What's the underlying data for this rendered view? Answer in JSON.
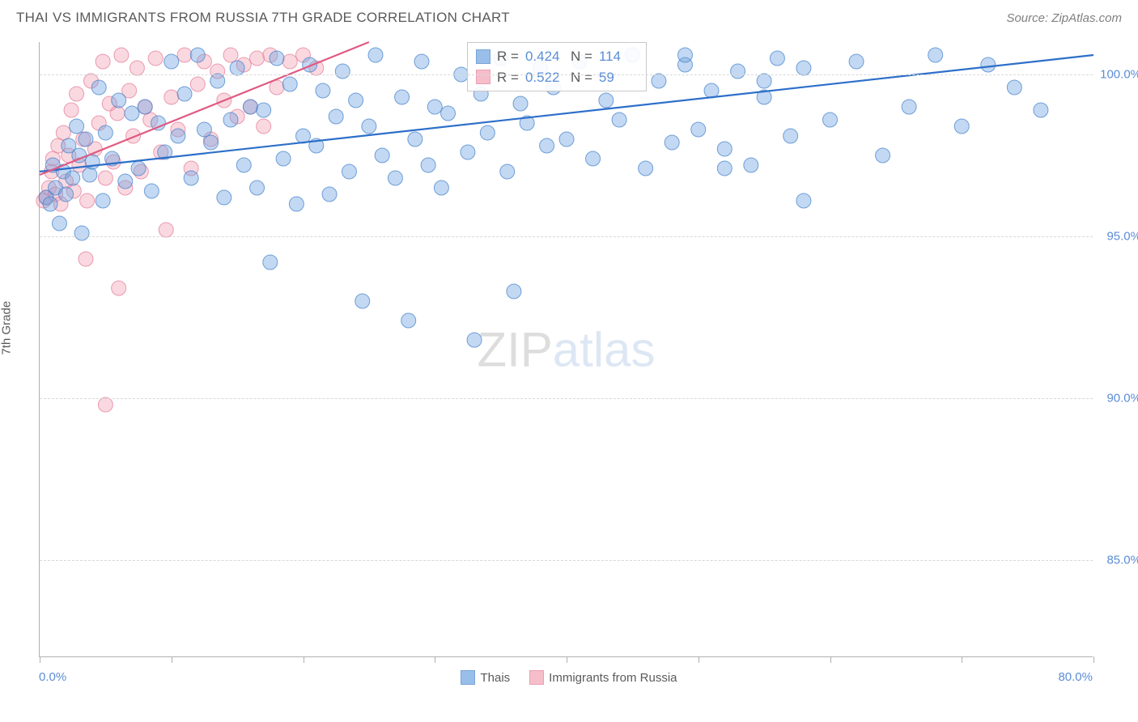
{
  "title": "THAI VS IMMIGRANTS FROM RUSSIA 7TH GRADE CORRELATION CHART",
  "source": "Source: ZipAtlas.com",
  "y_axis_label": "7th Grade",
  "watermark_zip": "ZIP",
  "watermark_atlas": "atlas",
  "chart": {
    "type": "scatter",
    "background_color": "#ffffff",
    "grid_color": "#d8d8d8",
    "axis_color": "#b0b0b0",
    "xlim": [
      0,
      80
    ],
    "ylim": [
      82,
      101
    ],
    "x_tick_positions": [
      0,
      10,
      20,
      30,
      40,
      50,
      60,
      70,
      80
    ],
    "x_tick_labels": {
      "left": "0.0%",
      "right": "80.0%"
    },
    "y_ticks": [
      85.0,
      90.0,
      95.0,
      100.0
    ],
    "y_tick_labels": [
      "85.0%",
      "90.0%",
      "95.0%",
      "100.0%"
    ],
    "marker_radius": 9,
    "marker_opacity": 0.42,
    "trend_line_width": 2.2,
    "series": [
      {
        "name": "Thais",
        "fill_color": "#6fa3e0",
        "stroke_color": "#3f7fc9",
        "trend_color": "#2d6fc9",
        "R": "0.424",
        "N": "114",
        "trend": {
          "x1": 0,
          "y1": 97.0,
          "x2": 80,
          "y2": 100.6
        },
        "points": [
          [
            0.5,
            96.2
          ],
          [
            0.8,
            96.0
          ],
          [
            1.0,
            97.2
          ],
          [
            1.2,
            96.5
          ],
          [
            1.5,
            95.4
          ],
          [
            1.8,
            97.0
          ],
          [
            2.0,
            96.3
          ],
          [
            2.2,
            97.8
          ],
          [
            2.5,
            96.8
          ],
          [
            2.8,
            98.4
          ],
          [
            3.0,
            97.5
          ],
          [
            3.2,
            95.1
          ],
          [
            3.5,
            98.0
          ],
          [
            3.8,
            96.9
          ],
          [
            4.0,
            97.3
          ],
          [
            4.5,
            99.6
          ],
          [
            4.8,
            96.1
          ],
          [
            5.0,
            98.2
          ],
          [
            5.5,
            97.4
          ],
          [
            6.0,
            99.2
          ],
          [
            6.5,
            96.7
          ],
          [
            7.0,
            98.8
          ],
          [
            7.5,
            97.1
          ],
          [
            8.0,
            99.0
          ],
          [
            8.5,
            96.4
          ],
          [
            9.0,
            98.5
          ],
          [
            9.5,
            97.6
          ],
          [
            10.0,
            100.4
          ],
          [
            10.5,
            98.1
          ],
          [
            11.0,
            99.4
          ],
          [
            11.5,
            96.8
          ],
          [
            12.0,
            100.6
          ],
          [
            12.5,
            98.3
          ],
          [
            13.0,
            97.9
          ],
          [
            13.5,
            99.8
          ],
          [
            14.0,
            96.2
          ],
          [
            14.5,
            98.6
          ],
          [
            15.0,
            100.2
          ],
          [
            15.5,
            97.2
          ],
          [
            16.0,
            99.0
          ],
          [
            16.5,
            96.5
          ],
          [
            17.0,
            98.9
          ],
          [
            17.5,
            94.2
          ],
          [
            18.0,
            100.5
          ],
          [
            18.5,
            97.4
          ],
          [
            19.0,
            99.7
          ],
          [
            19.5,
            96.0
          ],
          [
            20.0,
            98.1
          ],
          [
            20.5,
            100.3
          ],
          [
            21.0,
            97.8
          ],
          [
            21.5,
            99.5
          ],
          [
            22.0,
            96.3
          ],
          [
            22.5,
            98.7
          ],
          [
            23.0,
            100.1
          ],
          [
            23.5,
            97.0
          ],
          [
            24.0,
            99.2
          ],
          [
            24.5,
            93.0
          ],
          [
            25.0,
            98.4
          ],
          [
            25.5,
            100.6
          ],
          [
            26.0,
            97.5
          ],
          [
            27.0,
            96.8
          ],
          [
            27.5,
            99.3
          ],
          [
            28.0,
            92.4
          ],
          [
            28.5,
            98.0
          ],
          [
            29.0,
            100.4
          ],
          [
            29.5,
            97.2
          ],
          [
            30.0,
            99.0
          ],
          [
            30.5,
            96.5
          ],
          [
            31.0,
            98.8
          ],
          [
            32.0,
            100.0
          ],
          [
            32.5,
            97.6
          ],
          [
            33.0,
            91.8
          ],
          [
            33.5,
            99.4
          ],
          [
            34.0,
            98.2
          ],
          [
            35.0,
            100.5
          ],
          [
            35.5,
            97.0
          ],
          [
            36.0,
            93.3
          ],
          [
            36.5,
            99.1
          ],
          [
            37.0,
            98.5
          ],
          [
            38.0,
            100.2
          ],
          [
            38.5,
            97.8
          ],
          [
            39.0,
            99.6
          ],
          [
            40.0,
            98.0
          ],
          [
            41.0,
            100.4
          ],
          [
            42.0,
            97.4
          ],
          [
            43.0,
            99.2
          ],
          [
            44.0,
            98.6
          ],
          [
            45.0,
            100.6
          ],
          [
            46.0,
            97.1
          ],
          [
            47.0,
            99.8
          ],
          [
            48.0,
            97.9
          ],
          [
            49.0,
            100.3
          ],
          [
            50.0,
            98.3
          ],
          [
            51.0,
            99.5
          ],
          [
            52.0,
            97.7
          ],
          [
            53.0,
            100.1
          ],
          [
            54.0,
            97.2
          ],
          [
            55.0,
            99.3
          ],
          [
            56.0,
            100.5
          ],
          [
            57.0,
            98.1
          ],
          [
            58.0,
            96.1
          ],
          [
            60.0,
            98.6
          ],
          [
            62.0,
            100.4
          ],
          [
            64.0,
            97.5
          ],
          [
            66.0,
            99.0
          ],
          [
            68.0,
            100.6
          ],
          [
            70.0,
            98.4
          ],
          [
            72.0,
            100.3
          ],
          [
            74.0,
            99.6
          ],
          [
            76.0,
            98.9
          ],
          [
            49.0,
            100.6
          ],
          [
            52.0,
            97.1
          ],
          [
            55.0,
            99.8
          ],
          [
            58.0,
            100.2
          ]
        ]
      },
      {
        "name": "Immigrants from Russia",
        "fill_color": "#f2a3b5",
        "stroke_color": "#e37794",
        "trend_color": "#e05a82",
        "R": "0.522",
        "N": "59",
        "trend": {
          "x1": 0,
          "y1": 96.9,
          "x2": 25,
          "y2": 101.0
        },
        "points": [
          [
            0.3,
            96.1
          ],
          [
            0.5,
            96.2
          ],
          [
            0.7,
            96.5
          ],
          [
            0.9,
            97.0
          ],
          [
            1.0,
            97.4
          ],
          [
            1.2,
            96.3
          ],
          [
            1.4,
            97.8
          ],
          [
            1.6,
            96.0
          ],
          [
            1.8,
            98.2
          ],
          [
            2.0,
            96.7
          ],
          [
            2.2,
            97.5
          ],
          [
            2.4,
            98.9
          ],
          [
            2.6,
            96.4
          ],
          [
            2.8,
            99.4
          ],
          [
            3.0,
            97.2
          ],
          [
            3.3,
            98.0
          ],
          [
            3.6,
            96.1
          ],
          [
            3.9,
            99.8
          ],
          [
            4.2,
            97.7
          ],
          [
            4.5,
            98.5
          ],
          [
            4.8,
            100.4
          ],
          [
            5.0,
            96.8
          ],
          [
            5.3,
            99.1
          ],
          [
            5.6,
            97.3
          ],
          [
            5.9,
            98.8
          ],
          [
            6.2,
            100.6
          ],
          [
            6.5,
            96.5
          ],
          [
            6.8,
            99.5
          ],
          [
            7.1,
            98.1
          ],
          [
            7.4,
            100.2
          ],
          [
            7.7,
            97.0
          ],
          [
            8.0,
            99.0
          ],
          [
            8.4,
            98.6
          ],
          [
            8.8,
            100.5
          ],
          [
            9.2,
            97.6
          ],
          [
            9.6,
            95.2
          ],
          [
            10.0,
            99.3
          ],
          [
            10.5,
            98.3
          ],
          [
            11.0,
            100.6
          ],
          [
            11.5,
            97.1
          ],
          [
            12.0,
            99.7
          ],
          [
            12.5,
            100.4
          ],
          [
            13.0,
            98.0
          ],
          [
            13.5,
            100.1
          ],
          [
            14.0,
            99.2
          ],
          [
            14.5,
            100.6
          ],
          [
            15.0,
            98.7
          ],
          [
            15.5,
            100.3
          ],
          [
            16.0,
            99.0
          ],
          [
            16.5,
            100.5
          ],
          [
            17.0,
            98.4
          ],
          [
            17.5,
            100.6
          ],
          [
            18.0,
            99.6
          ],
          [
            19.0,
            100.4
          ],
          [
            20.0,
            100.6
          ],
          [
            21.0,
            100.2
          ],
          [
            6.0,
            93.4
          ],
          [
            5.0,
            89.8
          ],
          [
            3.5,
            94.3
          ]
        ]
      }
    ]
  },
  "stats_labels": {
    "R": "R =",
    "N": "N ="
  },
  "legend": {
    "series1": "Thais",
    "series2": "Immigrants from Russia"
  }
}
